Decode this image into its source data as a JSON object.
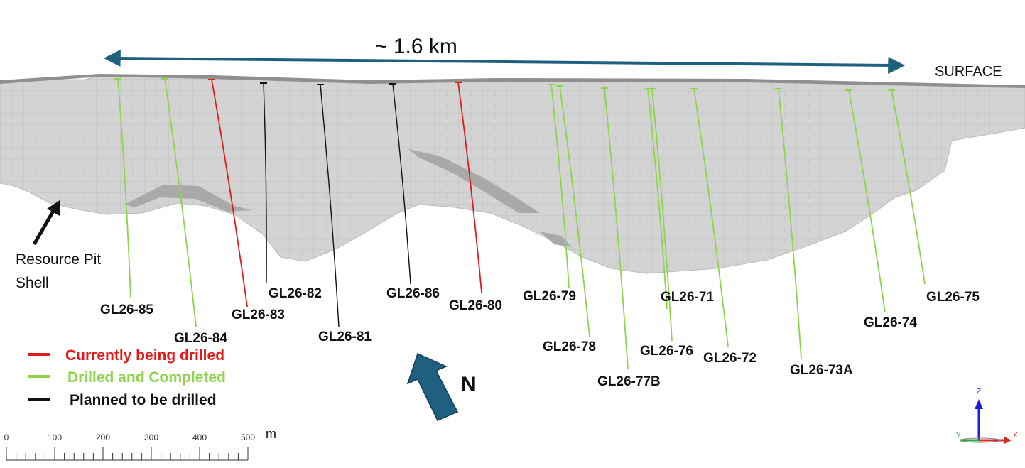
{
  "distance_label": "~ 1.6 km",
  "surface_label": "SURFACE",
  "pit_shell_label_line1": "Resource Pit",
  "pit_shell_label_line2": "Shell",
  "north_label": "N",
  "status_colors": {
    "current": "#e11b1b",
    "completed": "#8ed44a",
    "planned": "#111111"
  },
  "legend": [
    {
      "status": "current",
      "label": "Currently being drilled",
      "text_color": "#e11b1b"
    },
    {
      "status": "completed",
      "label": "Drilled and Completed",
      "text_color": "#8ed44a"
    },
    {
      "status": "planned",
      "label": "Planned to be drilled",
      "text_color": "#111111"
    }
  ],
  "scale_bar": {
    "ticks": [
      "0",
      "100",
      "200",
      "300",
      "400",
      "500"
    ],
    "unit": "m"
  },
  "axes_triad": {
    "z": "Z",
    "x": "X",
    "y": "Y"
  },
  "drill_holes": [
    {
      "name": "GL26-85",
      "status": "completed"
    },
    {
      "name": "GL26-84",
      "status": "completed"
    },
    {
      "name": "GL26-83",
      "status": "current"
    },
    {
      "name": "GL26-82",
      "status": "planned"
    },
    {
      "name": "GL26-81",
      "status": "planned"
    },
    {
      "name": "GL26-86",
      "status": "planned"
    },
    {
      "name": "GL26-80",
      "status": "current"
    },
    {
      "name": "GL26-79",
      "status": "completed"
    },
    {
      "name": "GL26-78",
      "status": "completed"
    },
    {
      "name": "GL26-77B",
      "status": "completed"
    },
    {
      "name": "GL26-71",
      "status": "completed"
    },
    {
      "name": "GL26-76",
      "status": "completed"
    },
    {
      "name": "GL26-72",
      "status": "completed"
    },
    {
      "name": "GL26-73A",
      "status": "completed"
    },
    {
      "name": "GL26-74",
      "status": "completed"
    },
    {
      "name": "GL26-75",
      "status": "completed"
    }
  ]
}
